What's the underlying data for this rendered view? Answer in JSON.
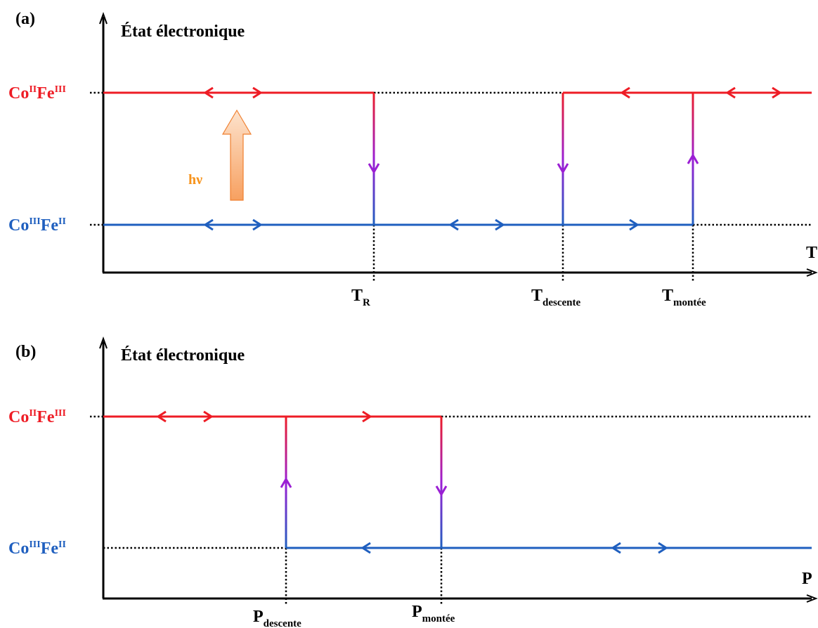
{
  "panel_a": {
    "label": "(a)",
    "y_axis_title": "État électronique",
    "x_axis_letter": "T",
    "level_high": {
      "base1": "Co",
      "sup1": "II",
      "base2": "Fe",
      "sup2": "III"
    },
    "level_low": {
      "base1": "Co",
      "sup1": "III",
      "base2": "Fe",
      "sup2": "II"
    },
    "hv_label": "hν",
    "ticks": [
      {
        "base": "T",
        "sub": "R"
      },
      {
        "base": "T",
        "sub": "descente"
      },
      {
        "base": "T",
        "sub": "montée"
      }
    ]
  },
  "panel_b": {
    "label": "(b)",
    "y_axis_title": "État électronique",
    "x_axis_letter": "P",
    "level_high": {
      "base1": "Co",
      "sup1": "II",
      "base2": "Fe",
      "sup2": "III"
    },
    "level_low": {
      "base1": "Co",
      "sup1": "III",
      "base2": "Fe",
      "sup2": "II"
    },
    "ticks": [
      {
        "base": "P",
        "sub": "descente"
      },
      {
        "base": "P",
        "sub": "montée"
      }
    ]
  },
  "colors": {
    "high_state": "#ee1c25",
    "low_state": "#1f5fbf",
    "transition": "#9b1fd4",
    "hv_arrow": "#f7a86a",
    "axis": "#000000"
  }
}
